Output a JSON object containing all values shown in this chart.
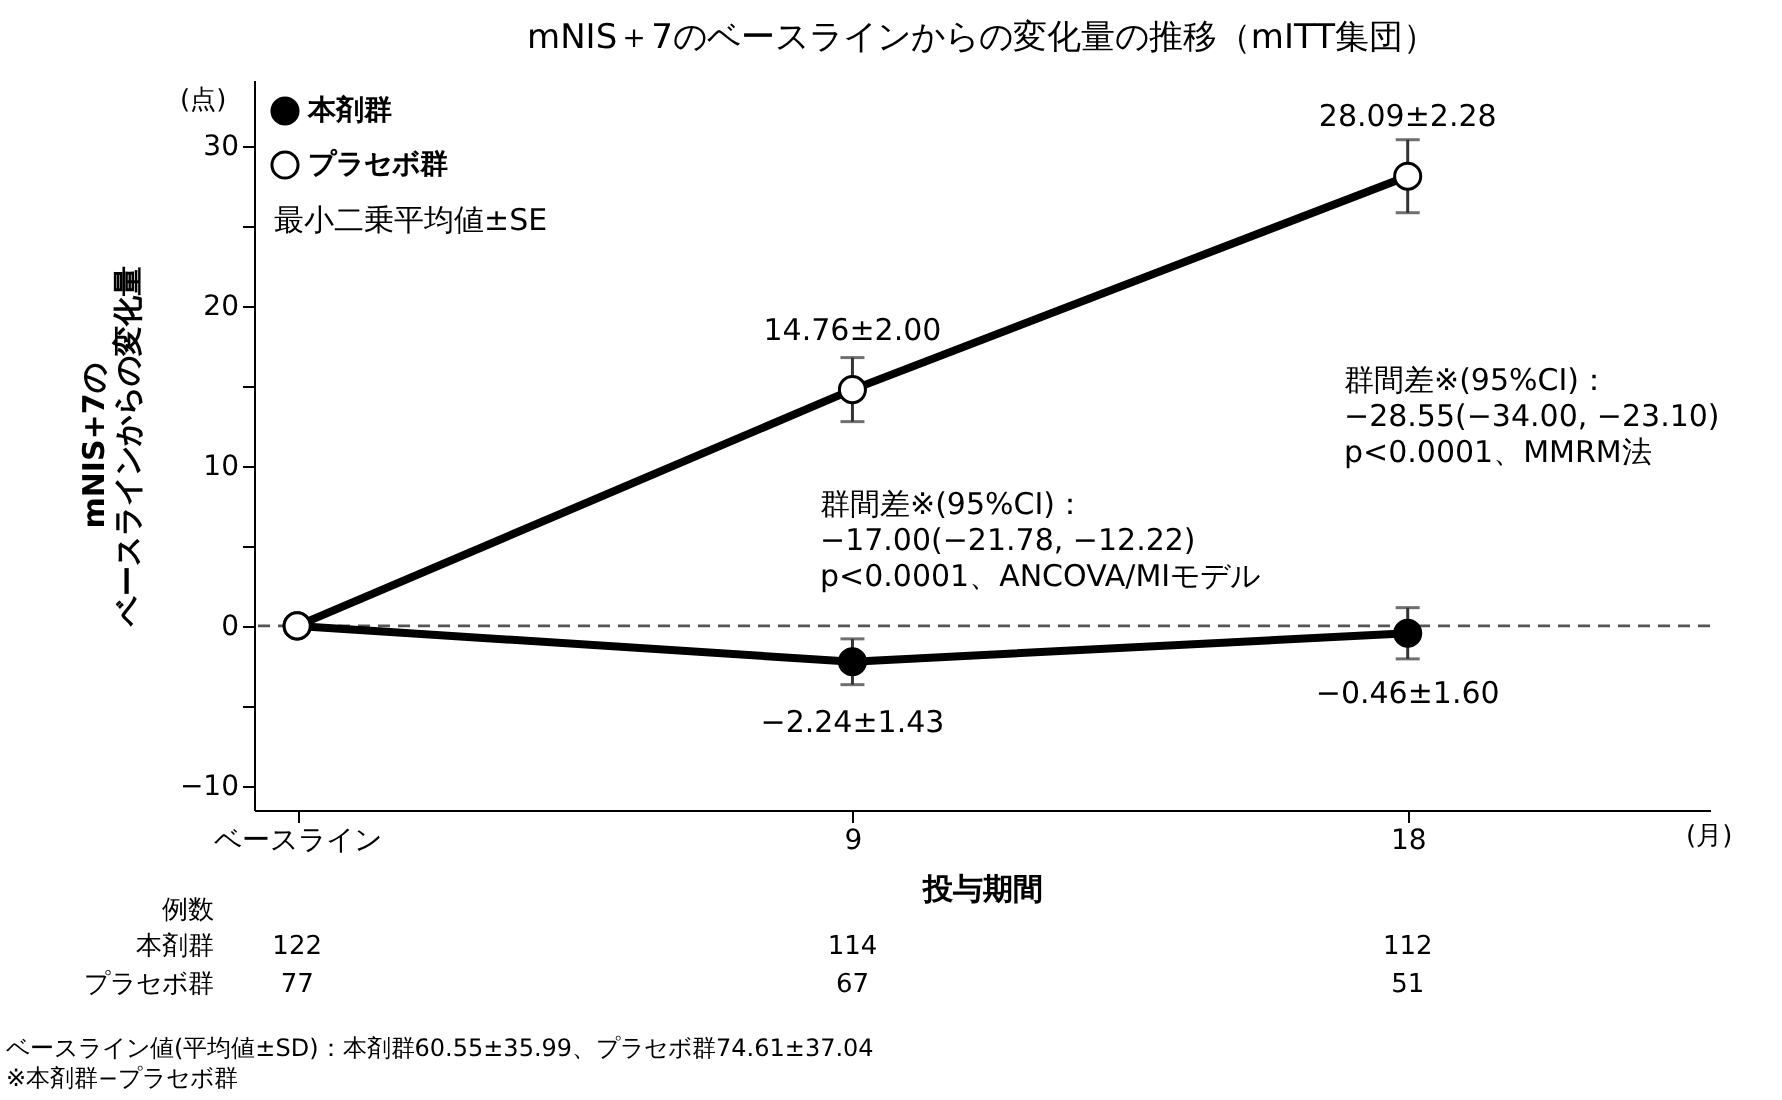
{
  "chart_data": {
    "type": "line",
    "title": "mNIS＋7のベースラインからの変化量の推移（mITT集団）",
    "xlabel": "投与期間",
    "ylabel": "mNIS+7のベースラインからの変化量",
    "x": [
      0,
      9,
      18
    ],
    "xlim": [
      -0.7,
      22.9
    ],
    "xticks": [
      {
        "value": 0,
        "label": "ベースライン"
      },
      9,
      18
    ],
    "ylim": [
      -11.5,
      34.1
    ],
    "yticks": [
      {
        "value": -10,
        "label": "−10"
      },
      {
        "value": -5,
        "label": null
      },
      0,
      {
        "value": 5,
        "label": null
      },
      10,
      {
        "value": 15,
        "label": null
      },
      20,
      {
        "value": 25,
        "label": null
      },
      30
    ],
    "series": [
      {
        "name": "本剤群",
        "color": "#000000",
        "values": [
          0,
          -2.24,
          -0.46
        ],
        "errors": [
          null,
          1.43,
          1.6
        ],
        "value_labels": [
          null,
          "−2.24±1.43",
          "−0.46±1.60"
        ]
      },
      {
        "name": "プラセボ群",
        "color": "#000000",
        "values": [
          0,
          14.76,
          28.09
        ],
        "errors": [
          null,
          2.0,
          2.28
        ],
        "value_labels": [
          null,
          "14.76±2.00",
          "28.09±2.28"
        ]
      }
    ],
    "ref_lines": [
      {
        "axis": "y",
        "value": 0,
        "color": "#555555",
        "line_style": "dashed"
      }
    ],
    "marker": "circle",
    "line_style": "solid",
    "grid": false,
    "legend": "top left",
    "annotations": [
      "(点)",
      "(月)",
      "最小二乗平均値±SE",
      "群間差※(95%CI)：\n−17.00(−21.78, −12.22)\np<0.0001、ANCOVA/MIモデル",
      "群間差※(95%CI)：\n−28.55(−34.00, −23.10)\np<0.0001、MMRM法",
      "例数",
      "本剤群",
      "122",
      "114",
      "112",
      "プラセボ群",
      "77",
      "67",
      "51",
      "ベースライン値(平均値±SD)：本剤群60.55±35.99、プラセボ群74.61±37.04",
      "※本剤群−プラセボ群"
    ]
  }
}
